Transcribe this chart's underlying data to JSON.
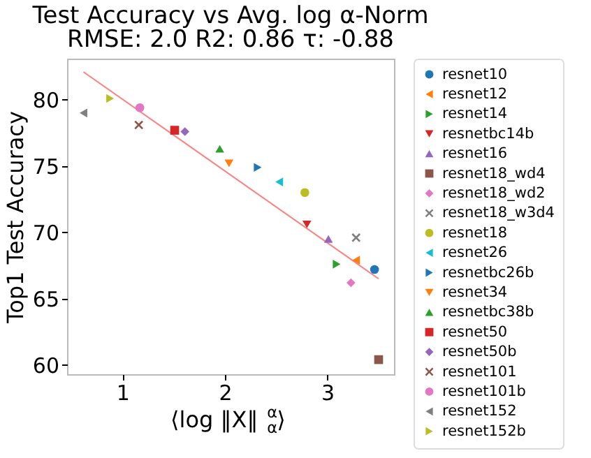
{
  "chart_data": {
    "type": "scatter",
    "title": "Test Accuracy vs Avg. log α-Norm",
    "subtitle": "RMSE: 2.0 R2: 0.86 τ: -0.88",
    "xlabel": "⟨log ‖X‖$_{α}$$^{α}$⟩",
    "ylabel": "Top1 Test Accuracy",
    "xlim": [
      0.46,
      3.65
    ],
    "ylim": [
      59.3,
      83.1
    ],
    "xticks": [
      1,
      2,
      3
    ],
    "yticks": [
      60,
      65,
      70,
      75,
      80
    ],
    "grid": false,
    "legend": "right",
    "series": [
      {
        "name": "resnet10",
        "color": "#1f77b4",
        "marker": "circle",
        "x": [
          3.46
        ],
        "values": [
          67.2
        ]
      },
      {
        "name": "resnet12",
        "color": "#ff7f0e",
        "marker": "triangle-left",
        "x": [
          3.28
        ],
        "values": [
          67.9
        ]
      },
      {
        "name": "resnet14",
        "color": "#2ca02c",
        "marker": "triangle-right",
        "x": [
          3.09
        ],
        "values": [
          67.6
        ]
      },
      {
        "name": "resnetbc14b",
        "color": "#d62728",
        "marker": "triangle-down",
        "x": [
          2.8
        ],
        "values": [
          70.6
        ]
      },
      {
        "name": "resnet16",
        "color": "#9467bd",
        "marker": "triangle-up",
        "x": [
          3.01
        ],
        "values": [
          69.5
        ]
      },
      {
        "name": "resnet18_wd4",
        "color": "#8c564b",
        "marker": "square",
        "x": [
          3.5
        ],
        "values": [
          60.4
        ]
      },
      {
        "name": "resnet18_wd2",
        "color": "#e377c2",
        "marker": "diamond",
        "x": [
          3.23
        ],
        "values": [
          66.2
        ]
      },
      {
        "name": "resnet18_w3d4",
        "color": "#7f7f7f",
        "marker": "x",
        "x": [
          3.28
        ],
        "values": [
          69.6
        ]
      },
      {
        "name": "resnet18",
        "color": "#bcbd22",
        "marker": "circle",
        "x": [
          2.78
        ],
        "values": [
          73.0
        ]
      },
      {
        "name": "resnet26",
        "color": "#17becf",
        "marker": "triangle-left",
        "x": [
          2.53
        ],
        "values": [
          73.8
        ]
      },
      {
        "name": "resnetbc26b",
        "color": "#1f77b4",
        "marker": "triangle-right",
        "x": [
          2.32
        ],
        "values": [
          74.9
        ]
      },
      {
        "name": "resnet34",
        "color": "#ff7f0e",
        "marker": "triangle-down",
        "x": [
          2.04
        ],
        "values": [
          75.2
        ]
      },
      {
        "name": "resnetbc38b",
        "color": "#2ca02c",
        "marker": "triangle-up",
        "x": [
          1.95
        ],
        "values": [
          76.3
        ]
      },
      {
        "name": "resnet50",
        "color": "#d62728",
        "marker": "square",
        "x": [
          1.51
        ],
        "values": [
          77.7
        ]
      },
      {
        "name": "resnet50b",
        "color": "#9467bd",
        "marker": "diamond",
        "x": [
          1.61
        ],
        "values": [
          77.6
        ]
      },
      {
        "name": "resnet101",
        "color": "#8c564b",
        "marker": "x",
        "x": [
          1.16
        ],
        "values": [
          78.1
        ]
      },
      {
        "name": "resnet101b",
        "color": "#e377c2",
        "marker": "circle",
        "x": [
          1.17
        ],
        "values": [
          79.4
        ]
      },
      {
        "name": "resnet152",
        "color": "#7f7f7f",
        "marker": "triangle-left",
        "x": [
          0.62
        ],
        "values": [
          79.0
        ]
      },
      {
        "name": "resnet152b",
        "color": "#bcbd22",
        "marker": "triangle-right",
        "x": [
          0.88
        ],
        "values": [
          80.1
        ]
      },
      {
        "type": "line",
        "color": "#ff7f7f",
        "x": [
          0.62,
          3.5
        ],
        "values": [
          82.1,
          66.5
        ]
      }
    ]
  }
}
